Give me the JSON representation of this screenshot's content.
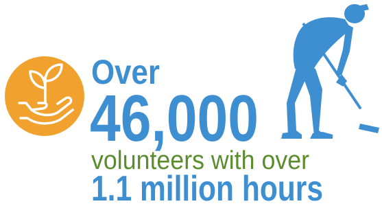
{
  "headline": {
    "lead": "Over",
    "number": "46,000",
    "middle": "volunteers with over",
    "tail": "1.1 million hours"
  }
}
